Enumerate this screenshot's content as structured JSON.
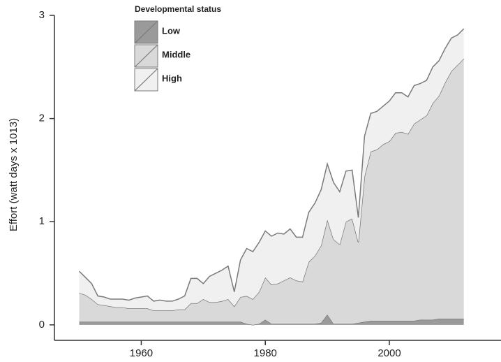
{
  "chart_data": {
    "type": "stacked_area",
    "y_label": "Effort (watt days x 1013)",
    "legend_title": "Developmental status",
    "x": [
      1950,
      1951,
      1952,
      1953,
      1954,
      1955,
      1956,
      1957,
      1958,
      1959,
      1960,
      1961,
      1962,
      1963,
      1964,
      1965,
      1966,
      1967,
      1968,
      1969,
      1970,
      1971,
      1972,
      1973,
      1974,
      1975,
      1976,
      1977,
      1978,
      1979,
      1980,
      1981,
      1982,
      1983,
      1984,
      1985,
      1986,
      1987,
      1988,
      1989,
      1990,
      1991,
      1992,
      1993,
      1994,
      1995,
      1996,
      1997,
      1998,
      1999,
      2000,
      2001,
      2002,
      2003,
      2004,
      2005,
      2006,
      2007,
      2008,
      2009,
      2010,
      2011,
      2012
    ],
    "series": [
      {
        "name": "Low",
        "color": "#9a9a9a",
        "values": [
          0.03,
          0.03,
          0.03,
          0.03,
          0.03,
          0.03,
          0.03,
          0.03,
          0.03,
          0.03,
          0.03,
          0.03,
          0.03,
          0.03,
          0.03,
          0.03,
          0.03,
          0.03,
          0.03,
          0.03,
          0.03,
          0.03,
          0.03,
          0.03,
          0.03,
          0.03,
          0.03,
          0.01,
          0,
          0.01,
          0.05,
          0.01,
          0.01,
          0.01,
          0.01,
          0.01,
          0.01,
          0.01,
          0.01,
          0.02,
          0.1,
          0.01,
          0.01,
          0.01,
          0.01,
          0.02,
          0.03,
          0.04,
          0.04,
          0.04,
          0.04,
          0.04,
          0.04,
          0.04,
          0.04,
          0.05,
          0.05,
          0.05,
          0.06,
          0.06,
          0.06,
          0.06,
          0.06
        ]
      },
      {
        "name": "Middle",
        "color": "#d9d9d9",
        "values": [
          0.28,
          0.26,
          0.22,
          0.17,
          0.16,
          0.15,
          0.14,
          0.14,
          0.13,
          0.13,
          0.13,
          0.13,
          0.11,
          0.11,
          0.11,
          0.11,
          0.12,
          0.12,
          0.18,
          0.18,
          0.22,
          0.19,
          0.19,
          0.2,
          0.22,
          0.15,
          0.24,
          0.27,
          0.25,
          0.31,
          0.41,
          0.38,
          0.39,
          0.42,
          0.45,
          0.42,
          0.41,
          0.6,
          0.66,
          0.75,
          0.92,
          0.82,
          0.77,
          0.99,
          1.02,
          0.78,
          1.41,
          1.64,
          1.66,
          1.71,
          1.74,
          1.82,
          1.83,
          1.81,
          1.91,
          1.94,
          1.98,
          2.1,
          2.16,
          2.29,
          2.4,
          2.46,
          2.52
        ]
      },
      {
        "name": "High",
        "color": "#f0f0f0",
        "values": [
          0.21,
          0.17,
          0.15,
          0.08,
          0.08,
          0.07,
          0.08,
          0.08,
          0.08,
          0.1,
          0.11,
          0.12,
          0.09,
          0.1,
          0.09,
          0.09,
          0.1,
          0.13,
          0.24,
          0.24,
          0.15,
          0.25,
          0.28,
          0.3,
          0.32,
          0.14,
          0.36,
          0.46,
          0.46,
          0.48,
          0.45,
          0.47,
          0.49,
          0.45,
          0.47,
          0.42,
          0.43,
          0.48,
          0.51,
          0.54,
          0.54,
          0.55,
          0.51,
          0.49,
          0.47,
          0.24,
          0.39,
          0.37,
          0.37,
          0.37,
          0.39,
          0.39,
          0.38,
          0.36,
          0.37,
          0.35,
          0.34,
          0.35,
          0.34,
          0.33,
          0.32,
          0.29,
          0.29
        ]
      }
    ],
    "line_color": "#7a7a7a",
    "xlim": [
      1946,
      2018
    ],
    "xticks": [
      1960,
      1980,
      2000
    ],
    "ylim": [
      -0.15,
      3
    ],
    "yticks": [
      0,
      1,
      2,
      3
    ]
  }
}
